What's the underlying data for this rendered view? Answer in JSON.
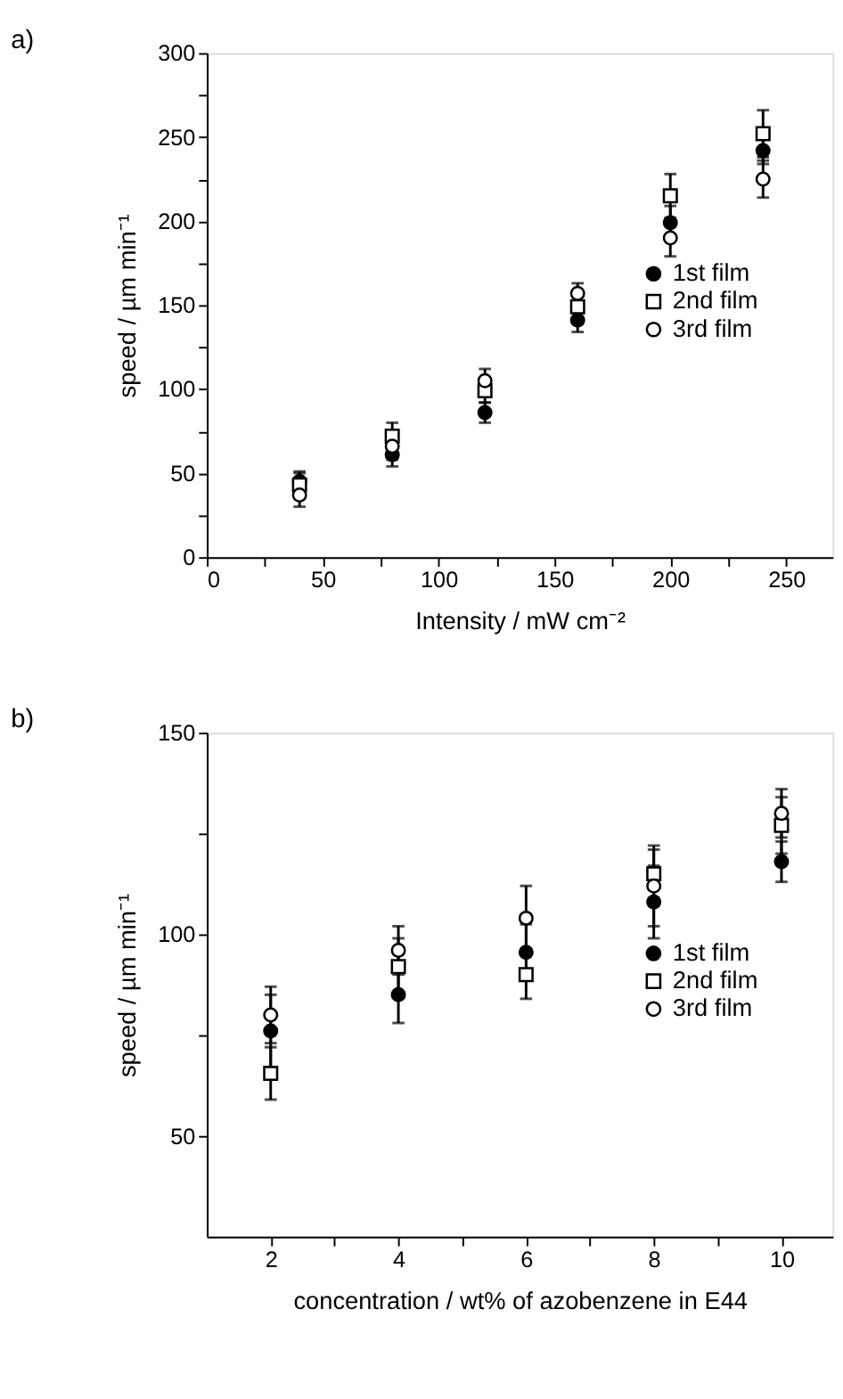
{
  "chart_data": [
    {
      "type": "scatter",
      "title": "a)",
      "xlabel": "Intensity / mW cm⁻²",
      "ylabel": "speed / µm min⁻¹",
      "x": [
        40,
        80,
        120,
        160,
        200,
        240
      ],
      "series": [
        {
          "name": "1st film",
          "color": "#000000",
          "marker": "circle",
          "values": [
            45,
            61,
            86,
            141,
            199,
            242
          ],
          "errors": [
            6,
            7,
            6,
            7,
            10,
            8
          ]
        },
        {
          "name": "2nd film",
          "color": "#000000",
          "marker": "square",
          "values": [
            43,
            72,
            99,
            149,
            215,
            252
          ],
          "errors": [
            7,
            8,
            7,
            7,
            13,
            14
          ]
        },
        {
          "name": "3rd film",
          "color": "#000000",
          "marker": "circle",
          "values": [
            37,
            66,
            105,
            157,
            190,
            225
          ],
          "errors": [
            7,
            8,
            7,
            6,
            11,
            11
          ]
        }
      ],
      "xlim": [
        0,
        270
      ],
      "ylim": [
        0,
        300
      ],
      "xticks": [
        0,
        {
          "value": 25,
          "label": null
        },
        50,
        {
          "value": 75,
          "label": null
        },
        100,
        {
          "value": 125,
          "label": null
        },
        150,
        {
          "value": 175,
          "label": null
        },
        200,
        {
          "value": 225,
          "label": null
        },
        250
      ],
      "yticks": [
        0,
        {
          "value": 25,
          "label": null
        },
        50,
        {
          "value": 75,
          "label": null
        },
        100,
        {
          "value": 125,
          "label": null
        },
        150,
        {
          "value": 175,
          "label": null
        },
        200,
        {
          "value": 225,
          "label": null
        },
        250,
        {
          "value": 275,
          "label": null
        },
        300
      ],
      "legend": "right",
      "grid": false
    },
    {
      "type": "scatter",
      "title": "b)",
      "xlabel": "concentration / wt% of azobenzene in E44",
      "ylabel": "speed / µm min⁻¹",
      "x": [
        2,
        4,
        6,
        8,
        10
      ],
      "series": [
        {
          "name": "1st film",
          "color": "#000000",
          "marker": "circle",
          "values": [
            76,
            85,
            95.5,
            108,
            118
          ],
          "errors": [
            9,
            7,
            7,
            9,
            5
          ]
        },
        {
          "name": "2nd film",
          "color": "#000000",
          "marker": "square",
          "values": [
            65.5,
            92,
            90,
            115,
            127
          ],
          "errors": [
            6.5,
            7,
            6,
            6,
            7
          ]
        },
        {
          "name": "3rd film",
          "color": "#000000",
          "marker": "circle",
          "values": [
            80,
            96,
            104,
            112,
            130
          ],
          "errors": [
            7,
            6,
            8,
            10,
            6
          ]
        }
      ],
      "xlim": [
        1,
        10.8
      ],
      "ylim": [
        25,
        150
      ],
      "xticks": [
        2,
        {
          "value": 3,
          "label": null
        },
        4,
        {
          "value": 5,
          "label": null
        },
        6,
        {
          "value": 7,
          "label": null
        },
        8,
        {
          "value": 9,
          "label": null
        },
        10
      ],
      "yticks": [
        50,
        {
          "value": 75,
          "label": null
        },
        100,
        {
          "value": 125,
          "label": null
        },
        150
      ],
      "legend": "right",
      "grid": false
    }
  ]
}
